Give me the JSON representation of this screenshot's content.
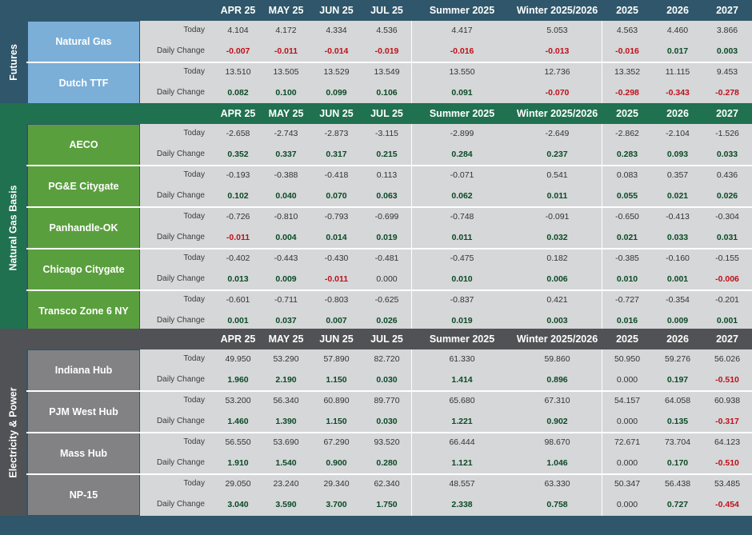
{
  "columns": [
    "APR 25",
    "MAY 25",
    "JUN 25",
    "JUL 25",
    "Summer 2025",
    "Winter 2025/2026",
    "2025",
    "2026",
    "2027"
  ],
  "metric_labels": {
    "today": "Today",
    "change": "Daily Change"
  },
  "colors": {
    "futures_header": "#2f566a",
    "futures_label_bg": "#7bafd8",
    "basis_header": "#207150",
    "basis_label_bg": "#5a9f3e",
    "power_header": "#505255",
    "power_label_bg": "#828284",
    "cell_bg": "#d5d7d8",
    "positive": "#0b4a26",
    "negative": "#c0101a"
  },
  "sections": [
    {
      "title": "Futures",
      "rows": [
        {
          "name": "Natural Gas",
          "today": [
            "4.104",
            "4.172",
            "4.334",
            "4.536",
            "4.417",
            "5.053",
            "4.563",
            "4.460",
            "3.866"
          ],
          "change": [
            "-0.007",
            "-0.011",
            "-0.014",
            "-0.019",
            "-0.016",
            "-0.013",
            "-0.016",
            "0.017",
            "0.003"
          ]
        },
        {
          "name": "Dutch TTF",
          "today": [
            "13.510",
            "13.505",
            "13.529",
            "13.549",
            "13.550",
            "12.736",
            "13.352",
            "11.115",
            "9.453"
          ],
          "change": [
            "0.082",
            "0.100",
            "0.099",
            "0.106",
            "0.091",
            "-0.070",
            "-0.298",
            "-0.343",
            "-0.278"
          ]
        }
      ]
    },
    {
      "title": "Natural Gas Basis",
      "rows": [
        {
          "name": "AECO",
          "today": [
            "-2.658",
            "-2.743",
            "-2.873",
            "-3.115",
            "-2.899",
            "-2.649",
            "-2.862",
            "-2.104",
            "-1.526"
          ],
          "change": [
            "0.352",
            "0.337",
            "0.317",
            "0.215",
            "0.284",
            "0.237",
            "0.283",
            "0.093",
            "0.033"
          ]
        },
        {
          "name": "PG&E Citygate",
          "today": [
            "-0.193",
            "-0.388",
            "-0.418",
            "0.113",
            "-0.071",
            "0.541",
            "0.083",
            "0.357",
            "0.436"
          ],
          "change": [
            "0.102",
            "0.040",
            "0.070",
            "0.063",
            "0.062",
            "0.011",
            "0.055",
            "0.021",
            "0.026"
          ]
        },
        {
          "name": "Panhandle-OK",
          "today": [
            "-0.726",
            "-0.810",
            "-0.793",
            "-0.699",
            "-0.748",
            "-0.091",
            "-0.650",
            "-0.413",
            "-0.304"
          ],
          "change": [
            "-0.011",
            "0.004",
            "0.014",
            "0.019",
            "0.011",
            "0.032",
            "0.021",
            "0.033",
            "0.031"
          ]
        },
        {
          "name": "Chicago Citygate",
          "today": [
            "-0.402",
            "-0.443",
            "-0.430",
            "-0.481",
            "-0.475",
            "0.182",
            "-0.385",
            "-0.160",
            "-0.155"
          ],
          "change": [
            "0.013",
            "0.009",
            "-0.011",
            "0.000",
            "0.010",
            "0.006",
            "0.010",
            "0.001",
            "-0.006"
          ]
        },
        {
          "name": "Transco Zone 6 NY",
          "today": [
            "-0.601",
            "-0.711",
            "-0.803",
            "-0.625",
            "-0.837",
            "0.421",
            "-0.727",
            "-0.354",
            "-0.201"
          ],
          "change": [
            "0.001",
            "0.037",
            "0.007",
            "0.026",
            "0.019",
            "0.003",
            "0.016",
            "0.009",
            "0.001"
          ]
        }
      ]
    },
    {
      "title": "Electricity & Power",
      "rows": [
        {
          "name": "Indiana Hub",
          "today": [
            "49.950",
            "53.290",
            "57.890",
            "82.720",
            "61.330",
            "59.860",
            "50.950",
            "59.276",
            "56.026"
          ],
          "change": [
            "1.960",
            "2.190",
            "1.150",
            "0.030",
            "1.414",
            "0.896",
            "0.000",
            "0.197",
            "-0.510"
          ]
        },
        {
          "name": "PJM West Hub",
          "today": [
            "53.200",
            "56.340",
            "60.890",
            "89.770",
            "65.680",
            "67.310",
            "54.157",
            "64.058",
            "60.938"
          ],
          "change": [
            "1.460",
            "1.390",
            "1.150",
            "0.030",
            "1.221",
            "0.902",
            "0.000",
            "0.135",
            "-0.317"
          ]
        },
        {
          "name": "Mass Hub",
          "today": [
            "56.550",
            "53.690",
            "67.290",
            "93.520",
            "66.444",
            "98.670",
            "72.671",
            "73.704",
            "64.123"
          ],
          "change": [
            "1.910",
            "1.540",
            "0.900",
            "0.280",
            "1.121",
            "1.046",
            "0.000",
            "0.170",
            "-0.510"
          ]
        },
        {
          "name": "NP-15",
          "today": [
            "29.050",
            "23.240",
            "29.340",
            "62.340",
            "48.557",
            "63.330",
            "50.347",
            "56.438",
            "53.485"
          ],
          "change": [
            "3.040",
            "3.590",
            "3.700",
            "1.750",
            "2.338",
            "0.758",
            "0.000",
            "0.727",
            "-0.454"
          ]
        }
      ]
    }
  ]
}
